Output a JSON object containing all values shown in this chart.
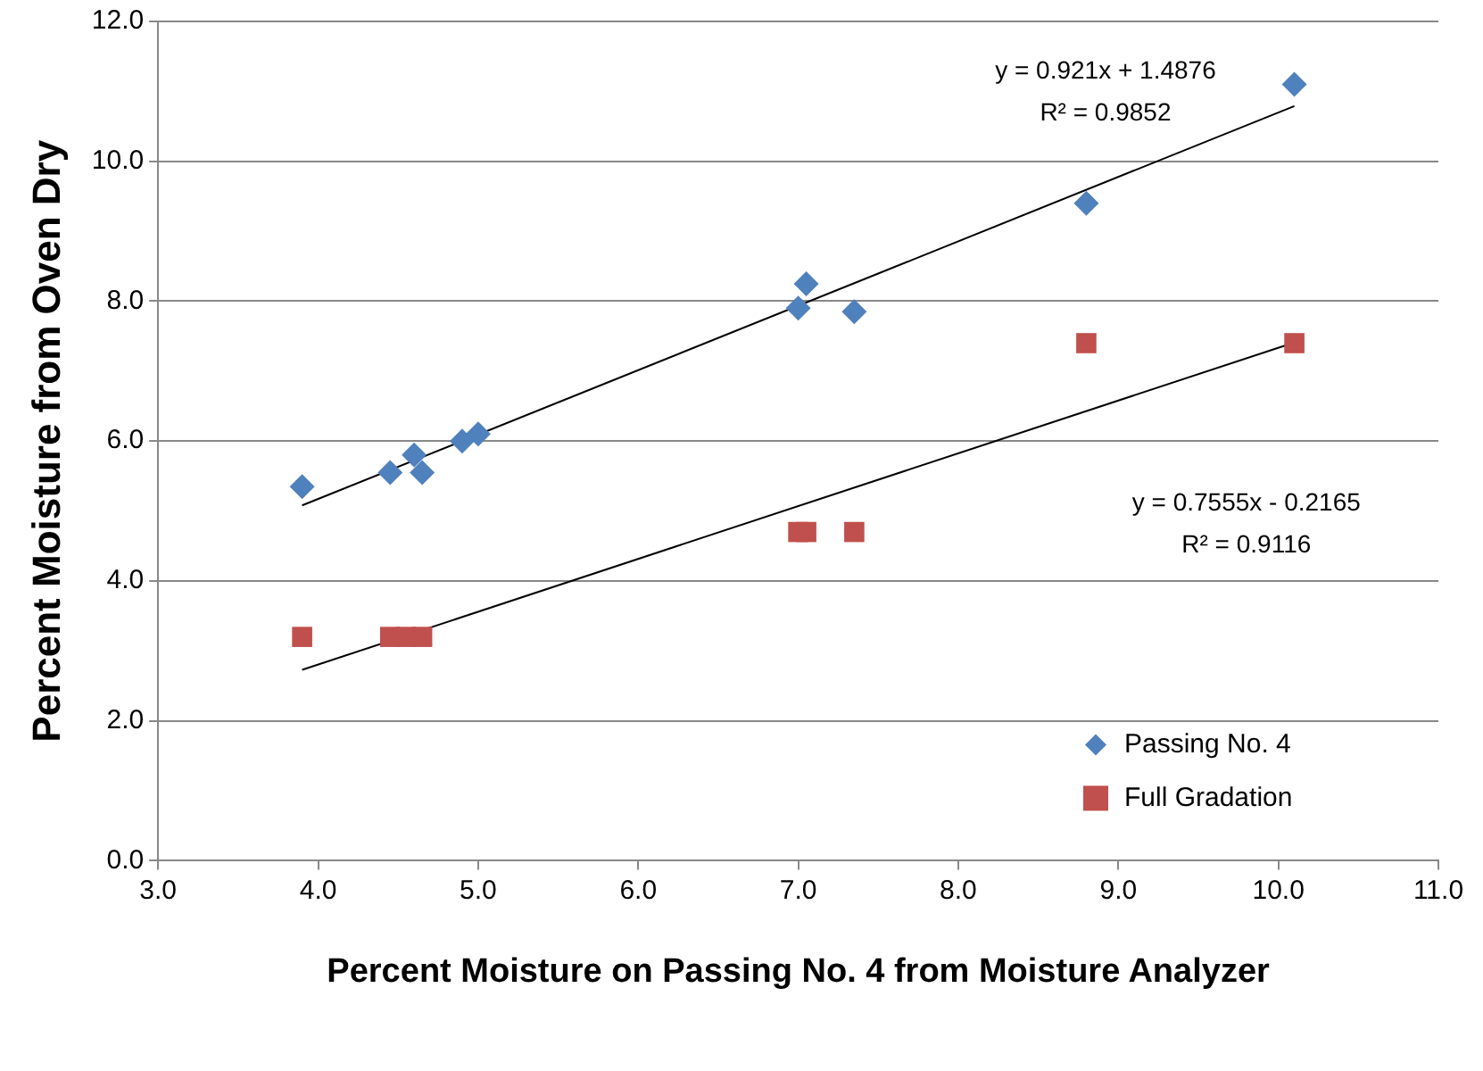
{
  "chart_data": {
    "type": "scatter",
    "xlabel": "Percent Moisture on Passing No. 4 from Moisture Analyzer",
    "ylabel": "Percent Moisture from Oven Dry",
    "xlim": [
      3.0,
      11.0
    ],
    "xticks": [
      {
        "value": 3,
        "label": "3.0"
      },
      {
        "value": 4,
        "label": "4.0"
      },
      {
        "value": 5,
        "label": "5.0"
      },
      {
        "value": 6,
        "label": "6.0"
      },
      {
        "value": 7,
        "label": "7.0"
      },
      {
        "value": 8,
        "label": "8.0"
      },
      {
        "value": 9,
        "label": "9.0"
      },
      {
        "value": 10,
        "label": "10.0"
      },
      {
        "value": 11,
        "label": "11.0"
      }
    ],
    "ylim": [
      0.0,
      12.0
    ],
    "yticks": [
      {
        "value": 0,
        "label": "0.0"
      },
      {
        "value": 2,
        "label": "2.0"
      },
      {
        "value": 4,
        "label": "4.0"
      },
      {
        "value": 6,
        "label": "6.0"
      },
      {
        "value": 8,
        "label": "8.0"
      },
      {
        "value": 10,
        "label": "10.0"
      },
      {
        "value": 12,
        "label": "12.0"
      }
    ],
    "grid": "y",
    "legend": "bottom right",
    "series": [
      {
        "name": "Passing No. 4",
        "color": "#4f81bd",
        "marker": "diamond",
        "x": [
          3.9,
          4.45,
          4.6,
          4.65,
          4.9,
          5.0,
          7.0,
          7.05,
          7.35,
          8.8,
          10.1
        ],
        "values": [
          5.35,
          5.55,
          5.8,
          5.55,
          6.0,
          6.1,
          7.9,
          8.25,
          7.85,
          9.4,
          11.1
        ]
      },
      {
        "name": "Full Gradation",
        "color": "#c0504d",
        "marker": "square",
        "x": [
          3.9,
          4.45,
          4.55,
          4.65,
          7.0,
          7.05,
          7.35,
          8.8,
          10.1
        ],
        "values": [
          3.2,
          3.2,
          3.2,
          3.2,
          4.7,
          4.7,
          4.7,
          7.4,
          7.4
        ]
      },
      {
        "type": "line",
        "color": "#000000",
        "marker": "none",
        "x": [
          3.9,
          10.1
        ],
        "values": [
          5.08,
          10.79
        ]
      },
      {
        "type": "line",
        "color": "#000000",
        "marker": "none",
        "x": [
          3.9,
          10.1
        ],
        "values": [
          2.73,
          7.41
        ]
      }
    ],
    "annotations": [
      "y = 0.921x + 1.4876",
      "R² = 0.9852",
      "y = 0.7555x - 0.2165",
      "R² = 0.9116"
    ]
  }
}
